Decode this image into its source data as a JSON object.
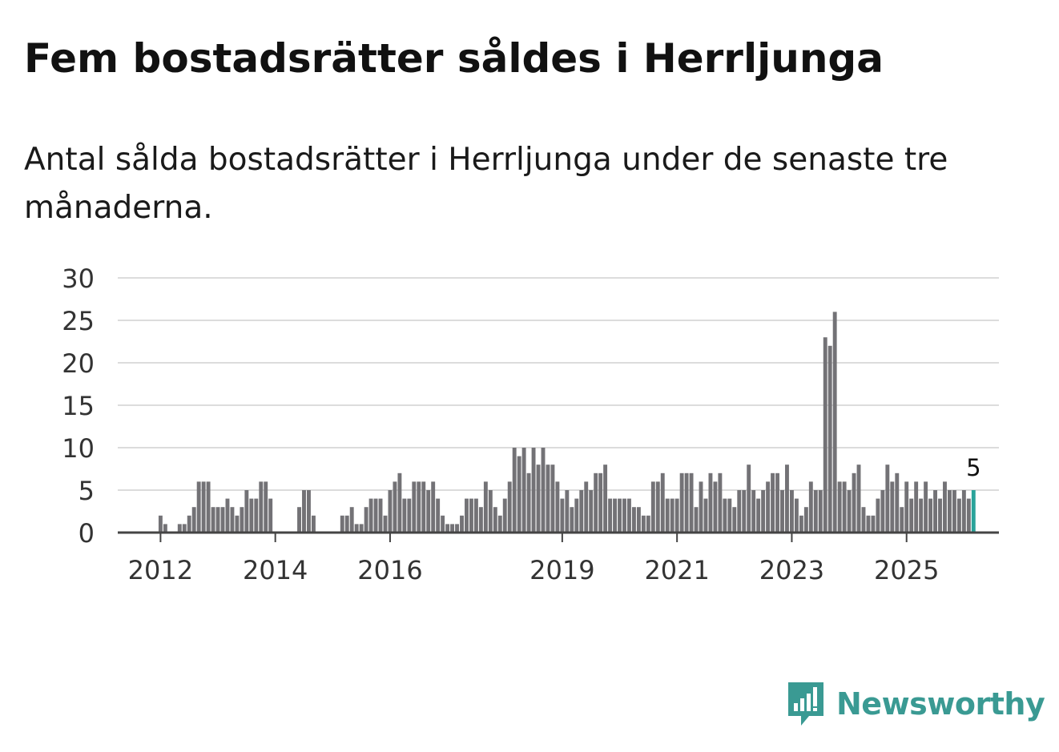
{
  "header": {
    "title": "Fem bostadsrätter såldes i Herrljunga",
    "subtitle": "Antal sålda bostadsrätter i Herrljunga under de senaste tre månaderna."
  },
  "brand": {
    "name": "Newsworthy",
    "color": "#3a9a93"
  },
  "colors": {
    "bar": "#737276",
    "highlight": "#2aa39a",
    "grid": "#dcdcdc",
    "axis": "#444444"
  },
  "chart_data": {
    "type": "bar",
    "title": "Fem bostadsrätter såldes i Herrljunga",
    "xlabel": "",
    "ylabel": "",
    "ylim": [
      0,
      30
    ],
    "yticks": [
      "0",
      "5",
      "10",
      "15",
      "20",
      "25",
      "30"
    ],
    "x_ticks": [
      {
        "label": "2012",
        "index": 0
      },
      {
        "label": "2014",
        "index": 24
      },
      {
        "label": "2016",
        "index": 48
      },
      {
        "label": "2019",
        "index": 84
      },
      {
        "label": "2021",
        "index": 108
      },
      {
        "label": "2023",
        "index": 132
      },
      {
        "label": "2025",
        "index": 156
      }
    ],
    "first_bar_index": -1,
    "values": [
      0,
      2,
      1,
      0,
      0,
      1,
      1,
      2,
      3,
      6,
      6,
      6,
      3,
      3,
      3,
      4,
      3,
      2,
      3,
      5,
      4,
      4,
      6,
      6,
      4,
      0,
      0,
      0,
      0,
      0,
      3,
      5,
      5,
      2,
      0,
      0,
      0,
      0,
      0,
      2,
      2,
      3,
      1,
      1,
      3,
      4,
      4,
      4,
      2,
      5,
      6,
      7,
      4,
      4,
      6,
      6,
      6,
      5,
      6,
      4,
      2,
      1,
      1,
      1,
      2,
      4,
      4,
      4,
      3,
      6,
      5,
      3,
      2,
      4,
      6,
      10,
      9,
      10,
      7,
      10,
      8,
      10,
      8,
      8,
      6,
      4,
      5,
      3,
      4,
      5,
      6,
      5,
      7,
      7,
      8,
      4,
      4,
      4,
      4,
      4,
      3,
      3,
      2,
      2,
      6,
      6,
      7,
      4,
      4,
      4,
      7,
      7,
      7,
      3,
      6,
      4,
      7,
      6,
      7,
      4,
      4,
      3,
      5,
      5,
      8,
      5,
      4,
      5,
      6,
      7,
      7,
      5,
      8,
      5,
      4,
      2,
      3,
      6,
      5,
      5,
      23,
      22,
      26,
      6,
      6,
      5,
      7,
      8,
      3,
      2,
      2,
      4,
      5,
      8,
      6,
      7,
      3,
      6,
      4,
      6,
      4,
      6,
      4,
      5,
      4,
      6,
      5,
      5,
      4,
      5,
      4,
      5
    ],
    "highlight_last": true,
    "last_value_label": "5",
    "grid": true
  }
}
